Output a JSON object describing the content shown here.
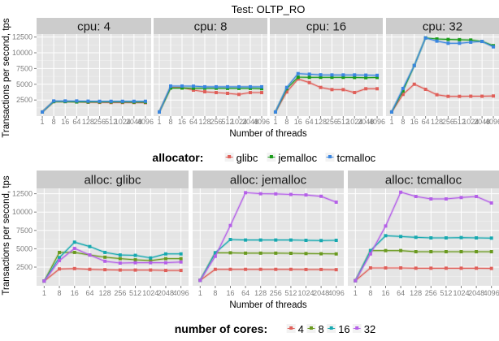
{
  "chart_data": [
    {
      "type": "line",
      "title": "Test:  OLTP_RO",
      "xlabel": "Number of threads",
      "ylabel": "Transactions per second, tps",
      "facet_label_prefix": "cpu: ",
      "facets": [
        "4",
        "8",
        "16",
        "32"
      ],
      "x": [
        "1",
        "8",
        "16",
        "64",
        "128",
        "256",
        "512",
        "1024",
        "2048",
        "4096"
      ],
      "yticks": [
        2500,
        5000,
        7500,
        10000,
        12500
      ],
      "ylim": [
        0,
        13000
      ],
      "grid": true,
      "legend": {
        "title": "allocator:",
        "position": "bottom",
        "entries": [
          {
            "name": "glibc",
            "color": "#e0605a"
          },
          {
            "name": "jemalloc",
            "color": "#1a9c1a"
          },
          {
            "name": "tcmalloc",
            "color": "#3b86e0"
          }
        ]
      },
      "panels": [
        {
          "facet": "4",
          "series": [
            {
              "name": "glibc",
              "values": [
                600,
                2250,
                2250,
                2200,
                2150,
                2120,
                2100,
                2100,
                2100,
                2080
              ]
            },
            {
              "name": "jemalloc",
              "values": [
                600,
                2250,
                2250,
                2200,
                2200,
                2200,
                2200,
                2200,
                2180,
                2180
              ]
            },
            {
              "name": "tcmalloc",
              "values": [
                600,
                2350,
                2350,
                2350,
                2320,
                2300,
                2300,
                2300,
                2300,
                2300
              ]
            }
          ]
        },
        {
          "facet": "8",
          "series": [
            {
              "name": "glibc",
              "values": [
                600,
                4500,
                4500,
                4070,
                3810,
                3680,
                3560,
                3390,
                3680,
                3680
              ]
            },
            {
              "name": "jemalloc",
              "values": [
                600,
                4400,
                4400,
                4370,
                4370,
                4370,
                4350,
                4350,
                4350,
                4300
              ]
            },
            {
              "name": "tcmalloc",
              "values": [
                600,
                4720,
                4720,
                4700,
                4600,
                4600,
                4600,
                4600,
                4600,
                4600
              ]
            }
          ]
        },
        {
          "facet": "16",
          "series": [
            {
              "name": "glibc",
              "values": [
                600,
                3780,
                5840,
                5270,
                4500,
                4160,
                4150,
                3690,
                4290,
                4290
              ]
            },
            {
              "name": "jemalloc",
              "values": [
                600,
                4290,
                6130,
                6100,
                6100,
                6100,
                6100,
                6080,
                6050,
                6080
              ]
            },
            {
              "name": "tcmalloc",
              "values": [
                600,
                4500,
                6690,
                6600,
                6500,
                6480,
                6480,
                6480,
                6450,
                6420
              ]
            }
          ]
        },
        {
          "facet": "32",
          "series": [
            {
              "name": "glibc",
              "values": [
                600,
                3390,
                5010,
                4200,
                3340,
                3080,
                3080,
                3100,
                3100,
                3140
              ]
            },
            {
              "name": "jemalloc",
              "values": [
                600,
                3940,
                7980,
                12360,
                12190,
                12110,
                12080,
                12020,
                11800,
                11120
              ]
            },
            {
              "name": "tcmalloc",
              "values": [
                600,
                4330,
                7980,
                12360,
                11850,
                11510,
                11510,
                11680,
                11800,
                10940
              ]
            }
          ]
        }
      ]
    },
    {
      "type": "line",
      "title": "",
      "xlabel": "Number of threads",
      "ylabel": "Transactions per second, tps",
      "facet_label_prefix": "alloc: ",
      "facets": [
        "glibc",
        "jemalloc",
        "tcmalloc"
      ],
      "x": [
        "1",
        "8",
        "16",
        "64",
        "128",
        "256",
        "512",
        "1024",
        "2048",
        "4096"
      ],
      "yticks": [
        2500,
        5000,
        7500,
        10000,
        12500
      ],
      "ylim": [
        0,
        13300
      ],
      "grid": true,
      "legend": {
        "title": "number of cores:",
        "position": "bottom",
        "entries": [
          {
            "name": "4",
            "color": "#e0605a"
          },
          {
            "name": "8",
            "color": "#6a9a1f"
          },
          {
            "name": "16",
            "color": "#17a9b0"
          },
          {
            "name": "32",
            "color": "#b560e8"
          }
        ]
      },
      "panels": [
        {
          "facet": "glibc",
          "series": [
            {
              "name": "4",
              "values": [
                600,
                2250,
                2300,
                2200,
                2150,
                2100,
                2100,
                2100,
                2050,
                2050
              ]
            },
            {
              "name": "8",
              "values": [
                600,
                4500,
                4500,
                4150,
                3850,
                3650,
                3500,
                3400,
                3650,
                3650
              ]
            },
            {
              "name": "16",
              "values": [
                600,
                3800,
                5900,
                5300,
                4500,
                4150,
                4100,
                3750,
                4300,
                4300
              ]
            },
            {
              "name": "32",
              "values": [
                600,
                3400,
                5050,
                4150,
                3300,
                3050,
                3100,
                3100,
                3100,
                3200
              ]
            }
          ]
        },
        {
          "facet": "jemalloc",
          "series": [
            {
              "name": "4",
              "values": [
                700,
                2200,
                2200,
                2200,
                2200,
                2200,
                2200,
                2180,
                2180,
                2150
              ]
            },
            {
              "name": "8",
              "values": [
                700,
                4450,
                4450,
                4400,
                4400,
                4400,
                4380,
                4350,
                4320,
                4300
              ]
            },
            {
              "name": "16",
              "values": [
                700,
                4450,
                6260,
                6190,
                6190,
                6190,
                6190,
                6150,
                6120,
                6150
              ]
            },
            {
              "name": "32",
              "values": [
                700,
                3970,
                8170,
                12640,
                12500,
                12480,
                12400,
                12330,
                12150,
                11350
              ]
            }
          ]
        },
        {
          "facet": "tcmalloc",
          "series": [
            {
              "name": "4",
              "values": [
                650,
                2390,
                2390,
                2390,
                2350,
                2350,
                2350,
                2350,
                2350,
                2320
              ]
            },
            {
              "name": "8",
              "values": [
                650,
                4750,
                4750,
                4750,
                4600,
                4600,
                4600,
                4600,
                4600,
                4600
              ]
            },
            {
              "name": "16",
              "values": [
                650,
                4750,
                6780,
                6670,
                6560,
                6480,
                6480,
                6520,
                6480,
                6450
              ]
            },
            {
              "name": "32",
              "values": [
                650,
                4300,
                8100,
                12710,
                12120,
                11790,
                11790,
                11980,
                12120,
                11240
              ]
            }
          ]
        }
      ]
    }
  ]
}
